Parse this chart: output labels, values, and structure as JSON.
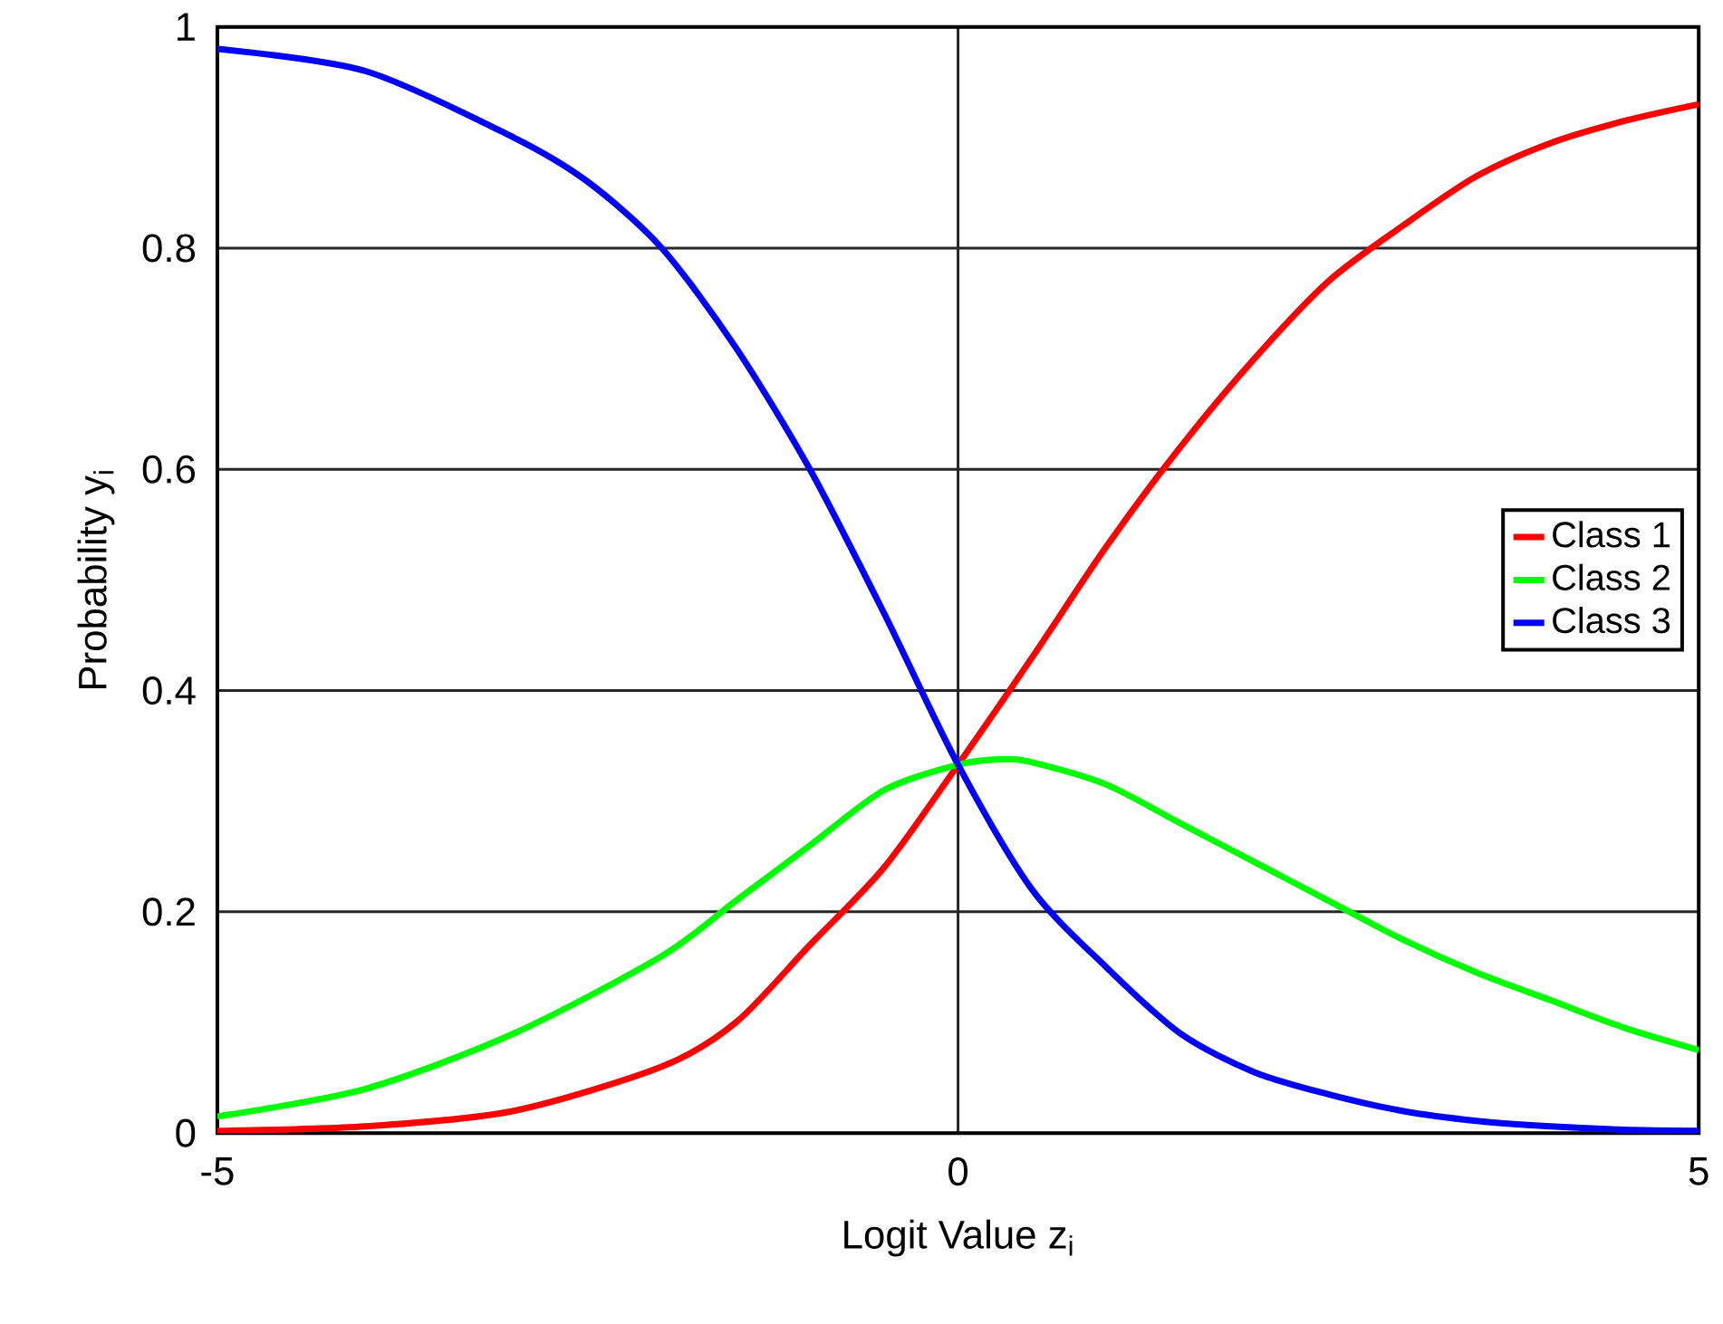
{
  "chart_data": {
    "type": "line",
    "xlabel": "Logit Value z$_{i}$",
    "ylabel": "Probability y$_{i}$",
    "xlim": [
      -5,
      5
    ],
    "ylim": [
      0,
      1
    ],
    "xticks": [
      -5,
      0,
      5
    ],
    "yticks": [
      0,
      0.2,
      0.4,
      0.6,
      0.8,
      1
    ],
    "grid": true,
    "legend": "right",
    "marker": "none",
    "line_style": "solid",
    "series": [
      {
        "name": "Class 1",
        "color": "#ff0000",
        "x": [
          -5,
          -4,
          -3,
          -2,
          -1.5,
          -1,
          -0.5,
          0,
          0.5,
          1,
          1.5,
          2,
          2.5,
          3,
          3.5,
          4,
          4.5,
          5
        ],
        "values": [
          0.002,
          0.006,
          0.02,
          0.06,
          0.1,
          0.17,
          0.24,
          0.333,
          0.43,
          0.53,
          0.62,
          0.7,
          0.77,
          0.82,
          0.865,
          0.895,
          0.915,
          0.93
        ]
      },
      {
        "name": "Class 2",
        "color": "#00ff00",
        "x": [
          -5,
          -4,
          -3,
          -2,
          -1.5,
          -1,
          -0.5,
          0,
          0.3,
          0.5,
          1,
          1.5,
          2,
          2.5,
          3,
          3.5,
          4,
          4.5,
          5
        ],
        "values": [
          0.015,
          0.04,
          0.09,
          0.16,
          0.21,
          0.26,
          0.31,
          0.333,
          0.338,
          0.335,
          0.315,
          0.28,
          0.245,
          0.21,
          0.175,
          0.145,
          0.12,
          0.095,
          0.075
        ]
      },
      {
        "name": "Class 3",
        "color": "#0000ff",
        "x": [
          -5,
          -4,
          -3,
          -2.5,
          -2,
          -1.5,
          -1,
          -0.5,
          0,
          0.5,
          1,
          1.5,
          2,
          2.5,
          3,
          3.5,
          4,
          4.5,
          5
        ],
        "values": [
          0.98,
          0.96,
          0.9,
          0.86,
          0.8,
          0.71,
          0.6,
          0.47,
          0.333,
          0.22,
          0.15,
          0.09,
          0.055,
          0.035,
          0.02,
          0.011,
          0.006,
          0.003,
          0.002
        ]
      }
    ]
  }
}
